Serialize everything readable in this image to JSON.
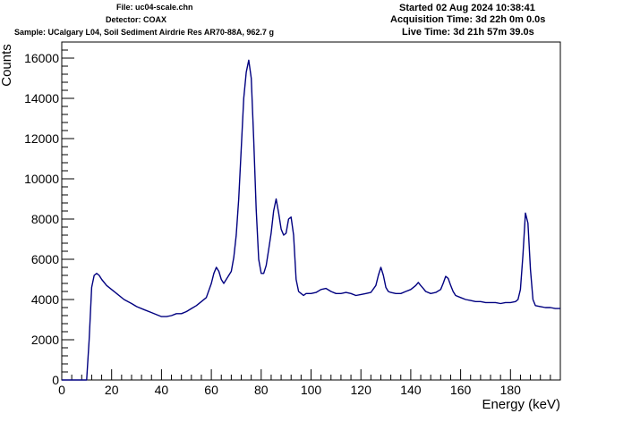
{
  "header": {
    "file": "File: uc04-scale.chn",
    "detector": "Detector: COAX",
    "sample": "Sample: UCalgary L04, Soil Sediment Airdrie Res AR70-88A, 962.7 g",
    "started": "Started 02 Aug 2024 10:38:41",
    "acquisition": "Acquisition Time: 3d 22h 0m 0.0s",
    "live": "Live Time: 3d 21h 57m 39.0s"
  },
  "chart_data": {
    "type": "line",
    "xlabel": "Energy (keV)",
    "ylabel": "Counts",
    "xlim": [
      0,
      200
    ],
    "ylim": [
      0,
      16800
    ],
    "x_ticks": [
      0,
      20,
      40,
      60,
      80,
      100,
      120,
      140,
      160,
      180
    ],
    "y_ticks": [
      0,
      2000,
      4000,
      6000,
      8000,
      10000,
      12000,
      14000,
      16000
    ],
    "grid": false,
    "line_color": "#000080",
    "series": [
      {
        "x": [
          0,
          10,
          11,
          12,
          13,
          14,
          15,
          16,
          18,
          20,
          22,
          25,
          28,
          30,
          33,
          36,
          38,
          40,
          42,
          44,
          46,
          48,
          50,
          52,
          54,
          56,
          58,
          60,
          61,
          62,
          63,
          64,
          65,
          66,
          67,
          68,
          69,
          70,
          71,
          72,
          73,
          74,
          75,
          76,
          77,
          78,
          79,
          80,
          81,
          82,
          83,
          84,
          85,
          86,
          87,
          88,
          89,
          90,
          91,
          92,
          93,
          94,
          95,
          96,
          97,
          98,
          100,
          102,
          104,
          106,
          108,
          110,
          112,
          114,
          116,
          118,
          120,
          122,
          124,
          126,
          127,
          128,
          129,
          130,
          131,
          132,
          134,
          136,
          138,
          140,
          142,
          143,
          144,
          145,
          146,
          148,
          150,
          152,
          153,
          154,
          155,
          156,
          157,
          158,
          160,
          162,
          164,
          166,
          168,
          170,
          172,
          174,
          176,
          178,
          180,
          182,
          183,
          184,
          185,
          186,
          187,
          188,
          189,
          190,
          192,
          194,
          196,
          198,
          200
        ],
        "y": [
          0,
          0,
          2000,
          4600,
          5200,
          5300,
          5200,
          5000,
          4700,
          4500,
          4300,
          4000,
          3800,
          3650,
          3500,
          3350,
          3250,
          3150,
          3150,
          3200,
          3300,
          3300,
          3400,
          3550,
          3700,
          3900,
          4100,
          4800,
          5300,
          5600,
          5400,
          5000,
          4800,
          5000,
          5200,
          5400,
          6100,
          7200,
          9000,
          11500,
          14000,
          15300,
          15900,
          15000,
          12000,
          8500,
          6000,
          5300,
          5300,
          5700,
          6500,
          7300,
          8400,
          9000,
          8300,
          7500,
          7200,
          7300,
          8000,
          8100,
          7200,
          5000,
          4400,
          4300,
          4200,
          4300,
          4300,
          4350,
          4500,
          4550,
          4400,
          4300,
          4300,
          4350,
          4300,
          4200,
          4250,
          4300,
          4350,
          4700,
          5200,
          5600,
          5200,
          4600,
          4400,
          4350,
          4300,
          4300,
          4400,
          4500,
          4700,
          4850,
          4700,
          4550,
          4400,
          4300,
          4350,
          4500,
          4800,
          5150,
          5050,
          4700,
          4400,
          4200,
          4100,
          4000,
          3950,
          3900,
          3900,
          3850,
          3850,
          3850,
          3800,
          3850,
          3850,
          3900,
          4000,
          4500,
          6200,
          8300,
          7800,
          5500,
          4000,
          3700,
          3650,
          3600,
          3600,
          3550,
          3550
        ]
      }
    ]
  }
}
